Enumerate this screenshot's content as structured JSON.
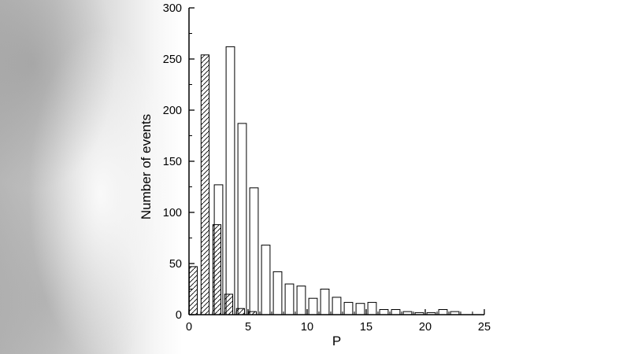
{
  "figure": {
    "background_color": "#ffffff",
    "artifact_color": "#bdbdbd"
  },
  "chart_data": {
    "type": "bar",
    "subtype": "overlaid-histograms",
    "title": "",
    "xlabel": "P",
    "ylabel": "Number of events",
    "xlim": [
      0,
      25
    ],
    "ylim": [
      0,
      300
    ],
    "x_major_ticks": [
      0,
      5,
      10,
      15,
      20,
      25
    ],
    "x_minor_step": 1,
    "y_major_ticks": [
      0,
      50,
      100,
      150,
      200,
      250,
      300
    ],
    "y_minor_step": 25,
    "grid": false,
    "legend": "none",
    "bar_outline_color": "#000000",
    "series": [
      {
        "name": "hatched histogram",
        "style": "hatched",
        "bin_width": 1,
        "bin_left_edges": [
          0,
          1,
          2,
          3,
          4,
          5
        ],
        "counts": [
          47,
          254,
          88,
          20,
          6,
          3
        ]
      },
      {
        "name": "open histogram",
        "style": "open",
        "bin_width": 1,
        "bin_left_edges": [
          2,
          3,
          4,
          5,
          6,
          7,
          8,
          9,
          10,
          11,
          12,
          13,
          14,
          15,
          16,
          17,
          18,
          19,
          20,
          21,
          22
        ],
        "counts": [
          127,
          262,
          187,
          124,
          68,
          42,
          30,
          28,
          16,
          25,
          17,
          12,
          11,
          12,
          5,
          5,
          3,
          2,
          2,
          5,
          3
        ]
      }
    ]
  }
}
